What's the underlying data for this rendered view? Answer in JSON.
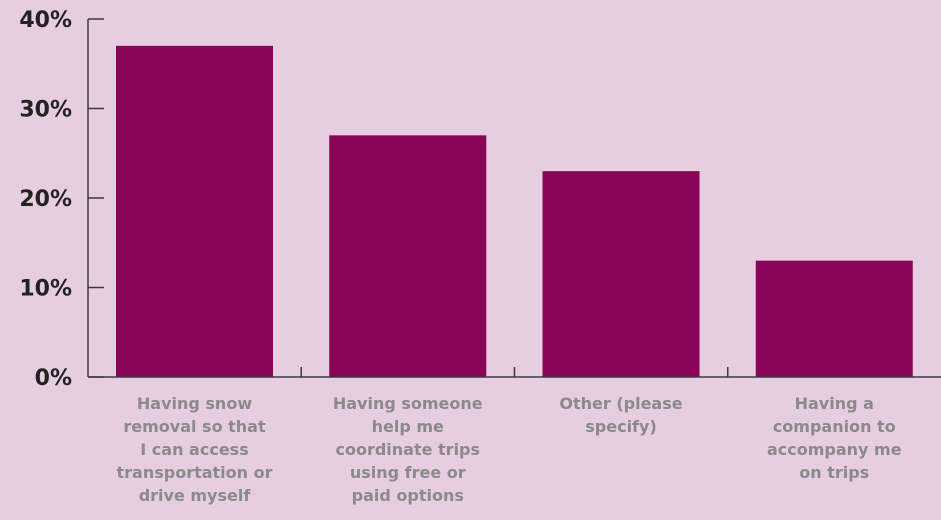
{
  "colors": {
    "background": "#e7cde0",
    "bar": "#8a0558",
    "axis": "#3a3a3a",
    "tick_text": "#222222",
    "category_text": "#8a8a8a"
  },
  "chart_data": {
    "type": "bar",
    "title": "",
    "xlabel": "",
    "ylabel": "",
    "ylim": [
      0,
      40
    ],
    "yticks": [
      0,
      10,
      20,
      30,
      40
    ],
    "ytick_labels": [
      "0%",
      "10%",
      "20%",
      "30%",
      "40%"
    ],
    "categories": [
      "Having snow removal so that I can access transportation or drive myself",
      "Having someone help me coordinate trips using free or paid options",
      "Other (please specify)",
      "Having a companion to accompany me on trips"
    ],
    "category_lines": [
      [
        "Having snow",
        "removal so that",
        "I can access",
        "transportation or",
        "drive myself"
      ],
      [
        "Having someone",
        "help me",
        "coordinate trips",
        "using free or",
        "paid options"
      ],
      [
        "Other (please",
        "specify)"
      ],
      [
        "Having a",
        "companion to",
        "accompany me",
        "on trips"
      ]
    ],
    "values": [
      37,
      27,
      23,
      13
    ],
    "grid": false,
    "legend": false
  }
}
